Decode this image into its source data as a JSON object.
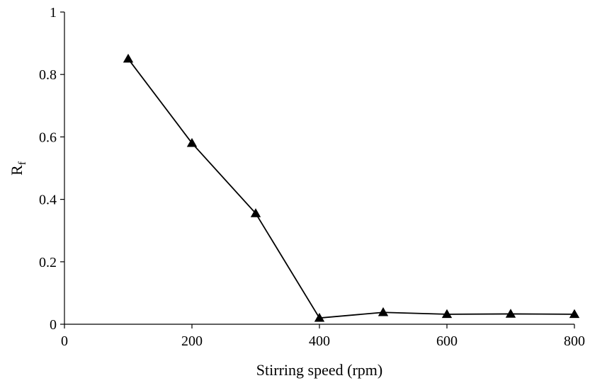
{
  "chart_data": {
    "type": "line",
    "title": "",
    "xlabel": "Stirring speed (rpm)",
    "ylabel": {
      "main": "R",
      "sub": "f"
    },
    "xlim": [
      0,
      800
    ],
    "ylim": [
      0,
      1
    ],
    "x_ticks": [
      0,
      200,
      400,
      600,
      800
    ],
    "y_ticks": [
      0,
      0.2,
      0.4,
      0.6,
      0.8,
      1
    ],
    "x_tick_labels": [
      "0",
      "200",
      "400",
      "600",
      "800"
    ],
    "y_tick_labels": [
      "0",
      "0.2",
      "0.4",
      "0.6",
      "0.8",
      "1"
    ],
    "grid": false,
    "marker": "triangle",
    "color": "#000000",
    "series": [
      {
        "x": [
          100,
          200,
          300,
          400,
          500,
          600,
          700,
          800
        ],
        "values": [
          0.85,
          0.58,
          0.355,
          0.02,
          0.038,
          0.032,
          0.033,
          0.032
        ]
      }
    ]
  }
}
